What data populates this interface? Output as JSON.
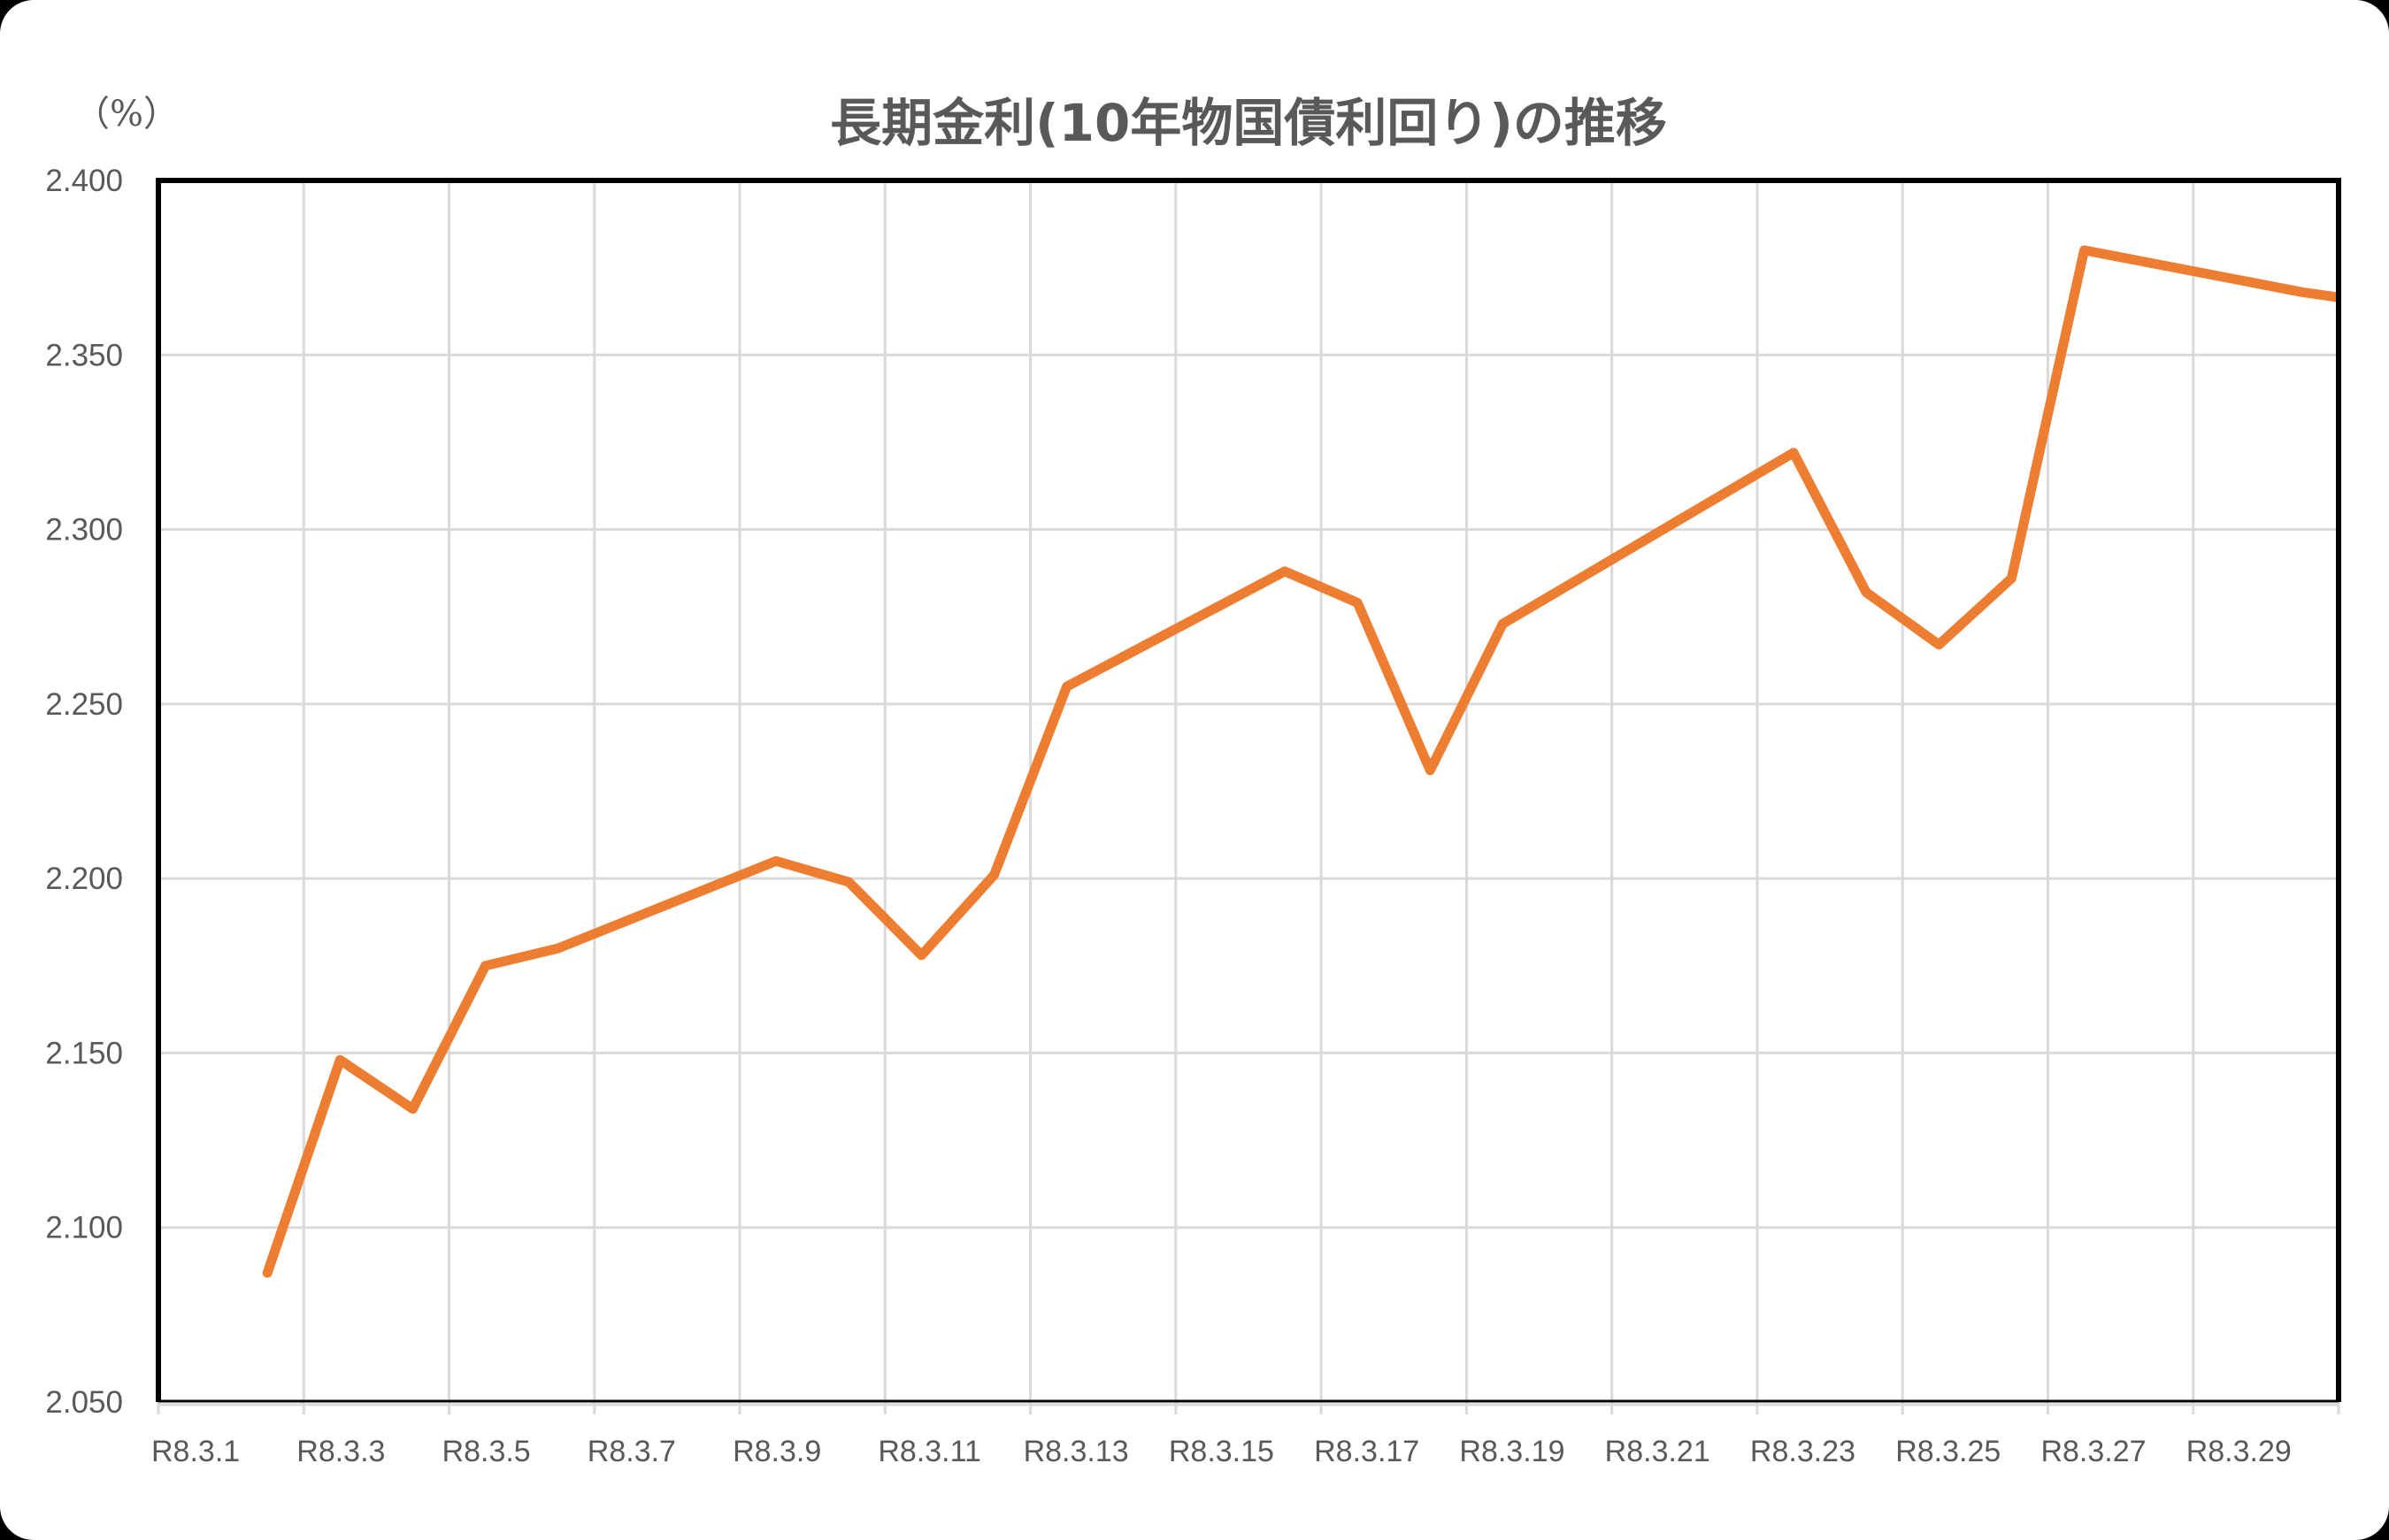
{
  "chart": {
    "title": "長期金利(10年物国債利回り)の推移",
    "unit_label": "（%）",
    "colors": {
      "line": "#ED7D31",
      "grid": "#D9D9D9",
      "axis_text": "#595959",
      "border": "#000000",
      "background": "#FFFFFF"
    }
  },
  "chart_data": {
    "type": "line",
    "title": "長期金利(10年物国債利回り)の推移",
    "xlabel": "",
    "ylabel": "（%）",
    "ylim": [
      2.05,
      2.4
    ],
    "y_ticks": [
      "2.400",
      "2.350",
      "2.300",
      "2.250",
      "2.200",
      "2.150",
      "2.100",
      "2.050"
    ],
    "x_axis": {
      "type": "date",
      "start_day": 1,
      "end_day": 31,
      "major_unit_days": 2,
      "tick_labels": [
        "R8.3.1",
        "R8.3.3",
        "R8.3.5",
        "R8.3.7",
        "R8.3.9",
        "R8.3.11",
        "R8.3.13",
        "R8.3.15",
        "R8.3.17",
        "R8.3.19",
        "R8.3.21",
        "R8.3.23",
        "R8.3.25",
        "R8.3.27",
        "R8.3.29"
      ]
    },
    "grid": true,
    "legend": "none",
    "series": [
      {
        "name": "長期金利",
        "x": [
          "R8.3.2",
          "R8.3.3",
          "R8.3.4",
          "R8.3.5",
          "R8.3.6",
          "R8.3.9",
          "R8.3.10",
          "R8.3.11",
          "R8.3.12",
          "R8.3.13",
          "R8.3.16",
          "R8.3.17",
          "R8.3.18",
          "R8.3.19",
          "R8.3.23",
          "R8.3.24",
          "R8.3.25",
          "R8.3.26",
          "R8.3.27",
          "R8.3.30",
          "R8.3.31"
        ],
        "day": [
          2,
          3,
          4,
          5,
          6,
          9,
          10,
          11,
          12,
          13,
          16,
          17,
          18,
          19,
          23,
          24,
          25,
          26,
          27,
          30,
          31
        ],
        "values": [
          2.087,
          2.148,
          2.134,
          2.175,
          2.18,
          2.205,
          2.199,
          2.178,
          2.201,
          2.255,
          2.288,
          2.279,
          2.231,
          2.273,
          2.322,
          2.282,
          2.267,
          2.286,
          2.38,
          2.368,
          2.365
        ]
      }
    ]
  }
}
